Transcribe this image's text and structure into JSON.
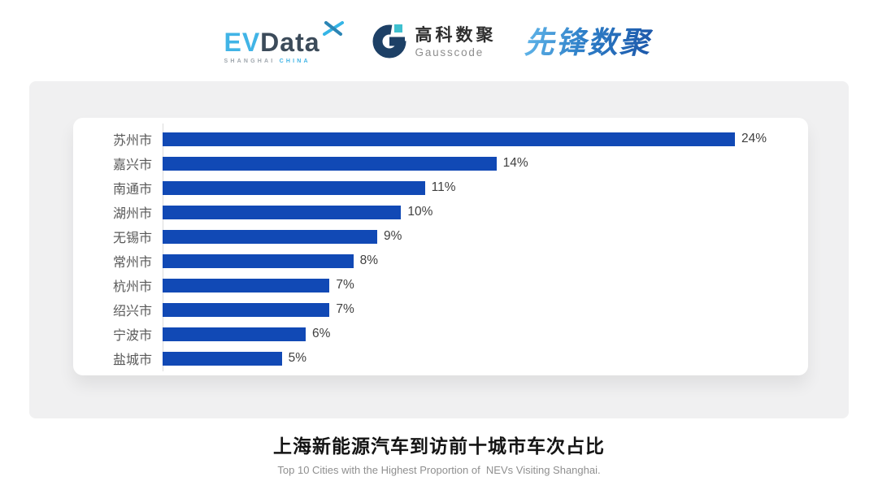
{
  "header": {
    "evdata": {
      "ev": "EV",
      "data": "Data",
      "sub_shanghai": "SHANGHAI",
      "sub_china": "CHINA",
      "blue": "#41b4e6",
      "dark": "#3c4b5a"
    },
    "gausscode": {
      "cn": "高科数聚",
      "en": "Gausscode",
      "navy": "#1d4066",
      "teal": "#3ec0cf"
    },
    "xianfeng": {
      "text": "先锋数聚",
      "gradient_start": "#62b7ea",
      "gradient_end": "#1b55a8"
    }
  },
  "chart_data": {
    "type": "bar",
    "orientation": "horizontal",
    "title": "上海新能源汽车到访前十城市车次占比",
    "subtitle": "Top 10 Cities with the Highest Proportion of  NEVs Visiting Shanghai.",
    "categories": [
      "苏州市",
      "嘉兴市",
      "南通市",
      "湖州市",
      "无锡市",
      "常州市",
      "杭州市",
      "绍兴市",
      "宁波市",
      "盐城市"
    ],
    "values": [
      24,
      14,
      11,
      10,
      9,
      8,
      7,
      7,
      6,
      5
    ],
    "value_labels": [
      "24%",
      "14%",
      "11%",
      "10%",
      "9%",
      "8%",
      "7%",
      "7%",
      "6%",
      "5%"
    ],
    "value_suffix": "%",
    "xlim": [
      0,
      24
    ],
    "grid": false,
    "legend": "none",
    "bar_color": "#1149b5",
    "axis_line_color": "#dcdcdc",
    "category_label_color": "#595959",
    "value_label_color": "#3f3f3f"
  },
  "footer": {
    "title": "上海新能源汽车到访前十城市车次占比",
    "subtitle": "Top 10 Cities with the Highest Proportion of  NEVs Visiting Shanghai."
  }
}
